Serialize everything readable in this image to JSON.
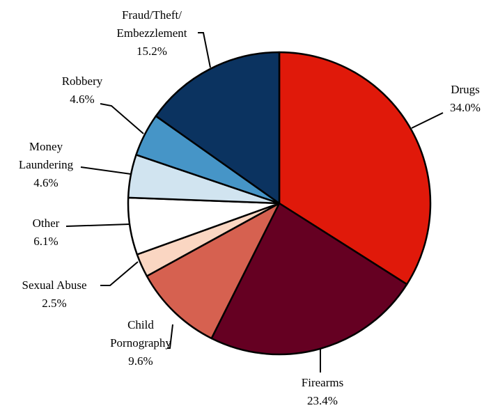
{
  "chart_data": {
    "type": "pie",
    "title": "",
    "start": "12 o'clock",
    "direction": "clockwise",
    "slices": [
      {
        "label_lines": [
          "Drugs"
        ],
        "pct_label": "34.0%",
        "value": 34.0,
        "color": "#E0190A"
      },
      {
        "label_lines": [
          "Firearms"
        ],
        "pct_label": "23.4%",
        "value": 23.4,
        "color": "#650022"
      },
      {
        "label_lines": [
          "Child",
          "Pornography"
        ],
        "pct_label": "9.6%",
        "value": 9.6,
        "color": "#D66150"
      },
      {
        "label_lines": [
          "Sexual Abuse"
        ],
        "pct_label": "2.5%",
        "value": 2.5,
        "color": "#FAD6C2"
      },
      {
        "label_lines": [
          "Other"
        ],
        "pct_label": "6.1%",
        "value": 6.1,
        "color": "#FFFFFF"
      },
      {
        "label_lines": [
          "Money",
          "Laundering"
        ],
        "pct_label": "4.6%",
        "value": 4.6,
        "color": "#D1E4F0"
      },
      {
        "label_lines": [
          "Robbery"
        ],
        "pct_label": "4.6%",
        "value": 4.6,
        "color": "#4695C7"
      },
      {
        "label_lines": [
          "Fraud/Theft/",
          "Embezzlement"
        ],
        "pct_label": "15.2%",
        "value": 15.2,
        "color": "#0B3360"
      }
    ]
  }
}
